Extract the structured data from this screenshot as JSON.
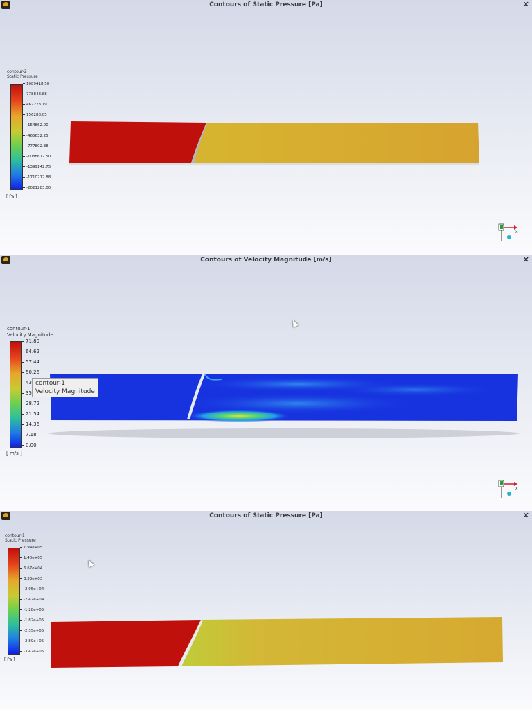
{
  "panels": [
    {
      "title": "Contours of Static Pressure [Pa]",
      "contour_name": "contour-2",
      "field": "Static Pressure",
      "unit": "[ Pa ]",
      "levels": [
        "1089418.50",
        "778848.88",
        "467278.19",
        "156288.05",
        "-154862.00",
        "-465632.25",
        "-777802.38",
        "-1088672.50",
        "-1399142.75",
        "-1710212.88",
        "-2021283.00"
      ]
    },
    {
      "title": "Contours of Velocity Magnitude [m/s]",
      "contour_name": "contour-1",
      "field": "Velocity Magnitude",
      "unit": "[ m/s ]",
      "levels": [
        "71.80",
        "64.62",
        "57.44",
        "50.26",
        "43",
        "35",
        "28.72",
        "21.54",
        "14.36",
        "7.18",
        "0.00"
      ],
      "tooltip": {
        "line1": "contour-1",
        "line2": "Velocity Magnitude"
      }
    },
    {
      "title": "Contours of Static Pressure [Pa]",
      "contour_name": "contour-1",
      "field": "Static Pressure",
      "unit": "[ Pa ]",
      "levels": [
        "1.94e+05",
        "1.40e+05",
        "6.67e+04",
        "3.33e+03",
        "-2.05e+04",
        "-7.42e+04",
        "-1.28e+05",
        "-1.82e+05",
        "-2.35e+05",
        "-2.89e+05",
        "-3.42e+05"
      ]
    }
  ],
  "colors": {
    "red": "#c0100c",
    "orange": "#d7a92e",
    "blue": "#1733e0",
    "yellow": "#c9cc3a"
  },
  "icons": [
    "app-icon",
    "close-icon",
    "axis-triad-icon",
    "mouse-cursor-icon"
  ]
}
